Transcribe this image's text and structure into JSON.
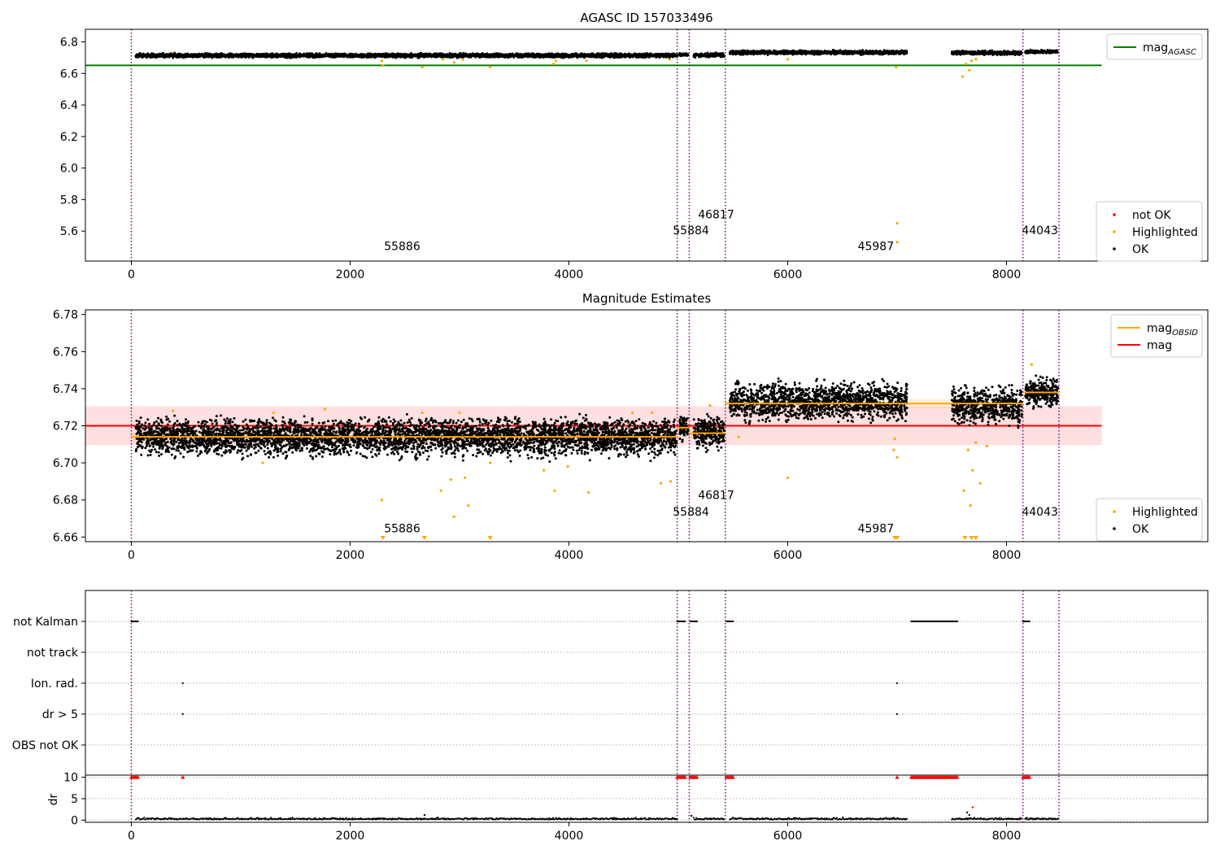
{
  "chart_data": [
    {
      "type": "scatter",
      "title": "AGASC ID 157033496",
      "xlim": [
        -420,
        9840
      ],
      "ylim": [
        5.41,
        6.88
      ],
      "xticks": [
        0,
        2000,
        4000,
        6000,
        8000
      ],
      "yticks": [
        5.6,
        5.8,
        6.0,
        6.2,
        6.4,
        6.6,
        6.8
      ],
      "ytick_labels": [
        "5.6",
        "5.8",
        "6.0",
        "6.2",
        "6.4",
        "6.6",
        "6.8"
      ],
      "legend_upper": [
        {
          "label_main": "mag",
          "label_sub": "AGASC",
          "color": "#008000",
          "marker": "line"
        }
      ],
      "legend_lower": [
        {
          "label": "not OK",
          "color": "#ff0000",
          "marker": "dot"
        },
        {
          "label": "Highlighted",
          "color": "#ffa500",
          "marker": "dot"
        },
        {
          "label": "OK",
          "color": "#000000",
          "marker": "dot"
        }
      ],
      "mag_agasc": {
        "value": 6.651,
        "x_range": [
          -420,
          8870
        ],
        "color": "#008000"
      },
      "obsid_boundaries": [
        0,
        4990,
        5100,
        5430,
        8150,
        8480
      ],
      "obsid_labels": [
        {
          "text": "55886",
          "x": 2310,
          "y": 5.48
        },
        {
          "text": "55884",
          "x": 4950,
          "y": 5.58
        },
        {
          "text": "46817",
          "x": 5180,
          "y": 5.68
        },
        {
          "text": "45987",
          "x": 6640,
          "y": 5.48
        },
        {
          "text": "44043",
          "x": 8140,
          "y": 5.58
        }
      ],
      "ok_segments": [
        {
          "x": [
            40,
            4990
          ],
          "y": 6.714,
          "spread": 0.006
        },
        {
          "x": [
            5010,
            5090
          ],
          "y": 6.719,
          "spread": 0.005
        },
        {
          "x": [
            5140,
            5420
          ],
          "y": 6.716,
          "spread": 0.006
        },
        {
          "x": [
            5470,
            7090
          ],
          "y": 6.733,
          "spread": 0.006
        },
        {
          "x": [
            7500,
            8140
          ],
          "y": 6.731,
          "spread": 0.006
        },
        {
          "x": [
            8170,
            8470
          ],
          "y": 6.738,
          "spread": 0.005
        }
      ],
      "highlighted_points": [
        {
          "x": 2290,
          "y": 6.68
        },
        {
          "x": 2300,
          "y": 6.65
        },
        {
          "x": 2660,
          "y": 6.64
        },
        {
          "x": 2850,
          "y": 6.69
        },
        {
          "x": 2950,
          "y": 6.67
        },
        {
          "x": 3030,
          "y": 6.69
        },
        {
          "x": 3280,
          "y": 6.64
        },
        {
          "x": 3860,
          "y": 6.66
        },
        {
          "x": 3880,
          "y": 6.68
        },
        {
          "x": 4160,
          "y": 6.68
        },
        {
          "x": 4920,
          "y": 6.69
        },
        {
          "x": 6000,
          "y": 6.69
        },
        {
          "x": 6990,
          "y": 6.64
        },
        {
          "x": 7000,
          "y": 5.65
        },
        {
          "x": 7000,
          "y": 5.53
        },
        {
          "x": 7600,
          "y": 6.58
        },
        {
          "x": 7630,
          "y": 6.66
        },
        {
          "x": 7660,
          "y": 6.62
        },
        {
          "x": 7680,
          "y": 6.68
        },
        {
          "x": 7720,
          "y": 6.69
        },
        {
          "x": 380,
          "y": 6.73
        },
        {
          "x": 1780,
          "y": 6.73
        }
      ]
    },
    {
      "type": "scatter",
      "title": "Magnitude Estimates",
      "xlim": [
        -420,
        9840
      ],
      "ylim": [
        6.6575,
        6.7825
      ],
      "xticks": [
        0,
        2000,
        4000,
        6000,
        8000
      ],
      "yticks": [
        6.66,
        6.68,
        6.7,
        6.72,
        6.74,
        6.76,
        6.78
      ],
      "ytick_labels": [
        "6.66",
        "6.68",
        "6.70",
        "6.72",
        "6.74",
        "6.76",
        "6.78"
      ],
      "legend_upper": [
        {
          "label_main": "mag",
          "label_sub": "OBSID",
          "color": "#ffa500",
          "marker": "line"
        },
        {
          "label_main": "mag",
          "label_sub": "",
          "color": "#ff0000",
          "marker": "line"
        }
      ],
      "legend_lower": [
        {
          "label": "Highlighted",
          "color": "#ffa500",
          "marker": "dot"
        },
        {
          "label": "OK",
          "color": "#000000",
          "marker": "dot"
        }
      ],
      "mag": {
        "value": 6.72,
        "band": [
          6.7095,
          6.7305
        ],
        "x_range": [
          -420,
          8870
        ],
        "color": "#ff0000"
      },
      "mag_obsid": [
        {
          "x": [
            0,
            4990
          ],
          "y": 6.714
        },
        {
          "x": [
            4990,
            5100
          ],
          "y": 6.719
        },
        {
          "x": [
            5100,
            5430
          ],
          "y": 6.716
        },
        {
          "x": [
            5430,
            8150
          ],
          "y": 6.732
        },
        {
          "x": [
            8150,
            8480
          ],
          "y": 6.738
        }
      ],
      "obsid_boundaries": [
        0,
        4990,
        5100,
        5430,
        8150,
        8480
      ],
      "obsid_labels": [
        {
          "text": "55886",
          "x": 2310,
          "y": 6.6625
        },
        {
          "text": "55884",
          "x": 4950,
          "y": 6.6715
        },
        {
          "text": "46817",
          "x": 5180,
          "y": 6.6805
        },
        {
          "text": "45987",
          "x": 6640,
          "y": 6.6625
        },
        {
          "text": "44043",
          "x": 8140,
          "y": 6.6715
        }
      ],
      "ok_segments": [
        {
          "x": [
            40,
            4990
          ],
          "y": 6.714,
          "spread": 0.0045
        },
        {
          "x": [
            5010,
            5090
          ],
          "y": 6.719,
          "spread": 0.003
        },
        {
          "x": [
            5140,
            5420
          ],
          "y": 6.716,
          "spread": 0.004
        },
        {
          "x": [
            5470,
            7090
          ],
          "y": 6.733,
          "spread": 0.0045
        },
        {
          "x": [
            7500,
            8140
          ],
          "y": 6.731,
          "spread": 0.0045
        },
        {
          "x": [
            8170,
            8470
          ],
          "y": 6.738,
          "spread": 0.0035
        }
      ],
      "highlighted_points": [
        {
          "x": 2290,
          "y": 6.68
        },
        {
          "x": 2830,
          "y": 6.685
        },
        {
          "x": 2920,
          "y": 6.691
        },
        {
          "x": 2950,
          "y": 6.671
        },
        {
          "x": 3050,
          "y": 6.692
        },
        {
          "x": 3080,
          "y": 6.677
        },
        {
          "x": 3280,
          "y": 6.7
        },
        {
          "x": 3770,
          "y": 6.696
        },
        {
          "x": 3870,
          "y": 6.685
        },
        {
          "x": 3990,
          "y": 6.698
        },
        {
          "x": 4180,
          "y": 6.684
        },
        {
          "x": 4840,
          "y": 6.689
        },
        {
          "x": 4930,
          "y": 6.69
        },
        {
          "x": 6000,
          "y": 6.692
        },
        {
          "x": 6980,
          "y": 6.713
        },
        {
          "x": 7000,
          "y": 6.703
        },
        {
          "x": 6970,
          "y": 6.707
        },
        {
          "x": 7610,
          "y": 6.685
        },
        {
          "x": 7650,
          "y": 6.707
        },
        {
          "x": 7670,
          "y": 6.677
        },
        {
          "x": 7690,
          "y": 6.696
        },
        {
          "x": 7720,
          "y": 6.711
        },
        {
          "x": 7760,
          "y": 6.689
        },
        {
          "x": 7820,
          "y": 6.709
        },
        {
          "x": 8230,
          "y": 6.753
        },
        {
          "x": 380,
          "y": 6.728
        },
        {
          "x": 1300,
          "y": 6.727
        },
        {
          "x": 1770,
          "y": 6.729
        },
        {
          "x": 2660,
          "y": 6.727
        },
        {
          "x": 3000,
          "y": 6.727
        },
        {
          "x": 4580,
          "y": 6.727
        },
        {
          "x": 4760,
          "y": 6.727
        },
        {
          "x": 5290,
          "y": 6.731
        },
        {
          "x": 5550,
          "y": 6.714
        },
        {
          "x": 1200,
          "y": 6.7
        }
      ],
      "out_of_range_low": [
        2300,
        2680,
        3280,
        6980,
        7000,
        7620,
        7680,
        7720
      ]
    },
    {
      "type": "scatter",
      "xlim": [
        -420,
        9840
      ],
      "xticks": [
        0,
        2000,
        4000,
        6000,
        8000
      ],
      "flag_rows": [
        "not Kalman",
        "not track",
        "Ion. rad.",
        "dr > 5",
        "OBS not OK"
      ],
      "obsid_boundaries": [
        0,
        4990,
        5100,
        5430,
        8150,
        8480
      ],
      "flag_points": {
        "not Kalman": [
          [
            0,
            60
          ],
          [
            4990,
            5070
          ],
          [
            5110,
            5180
          ],
          [
            5440,
            5510
          ],
          [
            7130,
            7550
          ],
          [
            8150,
            8210
          ]
        ],
        "Ion. rad.": [
          [
            470,
            470
          ],
          [
            7000,
            7000
          ]
        ],
        "dr > 5": [
          [
            470,
            470
          ],
          [
            7000,
            7000
          ]
        ]
      },
      "dr_axis": {
        "ylim": [
          -0.5,
          10.5
        ],
        "yticks": [
          0,
          5,
          10
        ],
        "ylabel": "dr"
      },
      "dr_clipped": [
        [
          0,
          60
        ],
        [
          470,
          470
        ],
        [
          4990,
          5070
        ],
        [
          5110,
          5180
        ],
        [
          5440,
          5510
        ],
        [
          7000,
          7000
        ],
        [
          7130,
          7550
        ],
        [
          8150,
          8210
        ]
      ],
      "dr_segments": [
        [
          40,
          4990
        ],
        [
          5140,
          5420
        ],
        [
          5470,
          7090
        ],
        [
          7500,
          8140
        ],
        [
          8170,
          8470
        ]
      ],
      "dr_outliers": [
        {
          "x": 2680,
          "y": 1.2
        },
        {
          "x": 7640,
          "y": 1.8
        },
        {
          "x": 7660,
          "y": 1.2
        },
        {
          "x": 7690,
          "y": 3.0
        },
        {
          "x": 5120,
          "y": 1.0
        }
      ]
    }
  ]
}
